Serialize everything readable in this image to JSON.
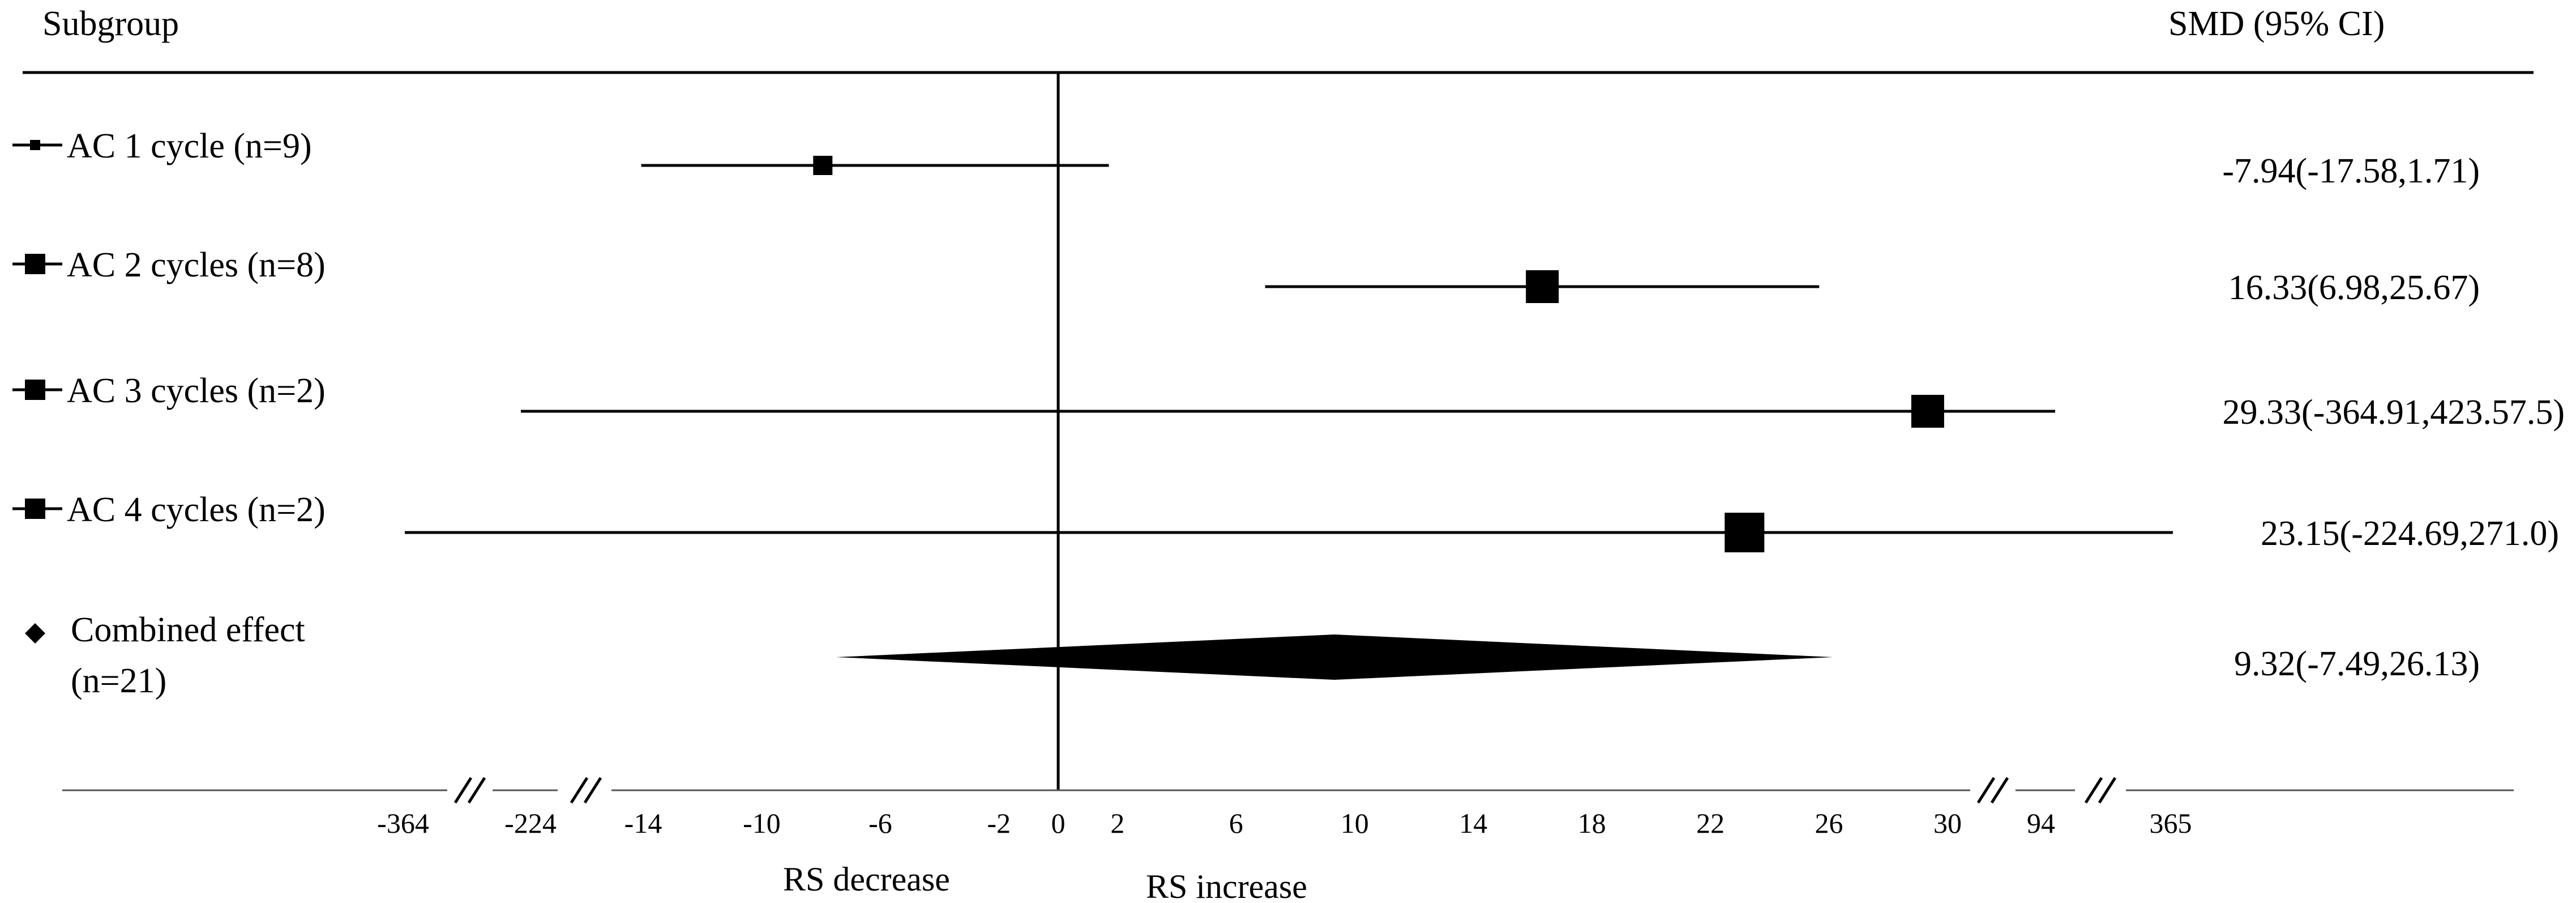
{
  "chart_data": {
    "type": "forest",
    "header_left": "Subgroup",
    "header_right": "SMD (95% CI)",
    "rows": [
      {
        "label": "AC 1 cycle (n=9)",
        "smd": -7.94,
        "ci_low": -17.58,
        "ci_high": 1.71,
        "ci_text": "-7.94(-17.58,1.71)",
        "weight_marker": "small"
      },
      {
        "label": "AC 2 cycles (n=8)",
        "smd": 16.33,
        "ci_low": 6.98,
        "ci_high": 25.67,
        "ci_text": "16.33(6.98,25.67)",
        "weight_marker": "medium"
      },
      {
        "label": "AC 3 cycles (n=2)",
        "smd": 29.33,
        "ci_low": -364.91,
        "ci_high": 423.575,
        "ci_text": "29.33(-364.91,423.57.5)",
        "weight_marker": "medium"
      },
      {
        "label": "AC 4 cycles (n=2)",
        "smd": 23.15,
        "ci_low": -224.69,
        "ci_high": 271.0,
        "ci_text": "23.15(-224.69,271.0)",
        "weight_marker": "large"
      }
    ],
    "combined": {
      "label_line1": "Combined effect",
      "label_line2": "(n=21)",
      "smd": 9.32,
      "ci_low": -7.49,
      "ci_high": 26.13,
      "ci_text": "9.32(-7.49,26.13)"
    },
    "x_axis": {
      "tick_labels": [
        "-364",
        "-224",
        "-14",
        "-10",
        "-6",
        "-2",
        "0",
        "2",
        "6",
        "10",
        "14",
        "18",
        "22",
        "26",
        "30",
        "94",
        "365"
      ],
      "broken": true,
      "reference_line": 0
    },
    "direction_labels": {
      "left": "RS decrease",
      "right": "RS increase"
    }
  },
  "colors": {
    "ink": "#000000",
    "axis_gray": "#555555",
    "background": "#ffffff"
  }
}
